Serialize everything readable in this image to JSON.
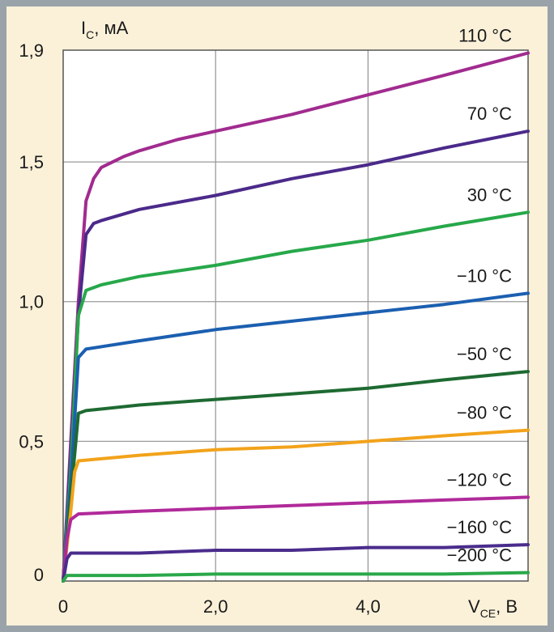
{
  "chart_data": {
    "type": "line",
    "title": "",
    "ylabel": {
      "main": "I",
      "sub": "C",
      "unit": ", мА"
    },
    "xlabel": {
      "main": "V",
      "sub": "CE",
      "unit": ", В"
    },
    "xlim": [
      0,
      6.1
    ],
    "ylim": [
      0,
      1.9
    ],
    "x_ticks": [
      {
        "value": 0,
        "label": "0"
      },
      {
        "value": 2,
        "label": "2,0"
      },
      {
        "value": 4,
        "label": "4,0"
      }
    ],
    "y_ticks": [
      {
        "value": 0,
        "label": "0"
      },
      {
        "value": 0.5,
        "label": "0,5"
      },
      {
        "value": 1.0,
        "label": "1,0"
      },
      {
        "value": 1.5,
        "label": "1,5"
      },
      {
        "value": 1.9,
        "label": "1,9"
      }
    ],
    "grid": true,
    "series": [
      {
        "name": "110 °C",
        "color": "#a12b8f",
        "points": [
          [
            0,
            0
          ],
          [
            0.1,
            0.5
          ],
          [
            0.2,
            1.0
          ],
          [
            0.3,
            1.36
          ],
          [
            0.4,
            1.44
          ],
          [
            0.5,
            1.48
          ],
          [
            0.8,
            1.52
          ],
          [
            1.0,
            1.54
          ],
          [
            1.5,
            1.58
          ],
          [
            2.0,
            1.61
          ],
          [
            3.0,
            1.67
          ],
          [
            4.0,
            1.74
          ],
          [
            5.0,
            1.81
          ],
          [
            6.1,
            1.89
          ]
        ]
      },
      {
        "name": "70 °C",
        "color": "#4b2a8a",
        "points": [
          [
            0,
            0
          ],
          [
            0.1,
            0.45
          ],
          [
            0.2,
            0.95
          ],
          [
            0.3,
            1.24
          ],
          [
            0.4,
            1.28
          ],
          [
            0.5,
            1.29
          ],
          [
            1.0,
            1.33
          ],
          [
            2.0,
            1.38
          ],
          [
            3.0,
            1.44
          ],
          [
            4.0,
            1.49
          ],
          [
            5.0,
            1.55
          ],
          [
            6.1,
            1.61
          ]
        ]
      },
      {
        "name": "30 °C",
        "color": "#27a84a",
        "points": [
          [
            0,
            0
          ],
          [
            0.1,
            0.4
          ],
          [
            0.2,
            0.95
          ],
          [
            0.3,
            1.04
          ],
          [
            0.5,
            1.06
          ],
          [
            1.0,
            1.09
          ],
          [
            2.0,
            1.13
          ],
          [
            3.0,
            1.18
          ],
          [
            4.0,
            1.22
          ],
          [
            5.0,
            1.27
          ],
          [
            6.1,
            1.32
          ]
        ]
      },
      {
        "name": "−10 °C",
        "color": "#1b5fb0",
        "points": [
          [
            0,
            0
          ],
          [
            0.1,
            0.35
          ],
          [
            0.2,
            0.8
          ],
          [
            0.3,
            0.83
          ],
          [
            1.0,
            0.86
          ],
          [
            2.0,
            0.9
          ],
          [
            3.0,
            0.93
          ],
          [
            4.0,
            0.96
          ],
          [
            5.0,
            0.99
          ],
          [
            6.1,
            1.03
          ]
        ]
      },
      {
        "name": "−50 °C",
        "color": "#1e6a32",
        "points": [
          [
            0,
            0
          ],
          [
            0.1,
            0.3
          ],
          [
            0.2,
            0.6
          ],
          [
            0.3,
            0.61
          ],
          [
            1.0,
            0.63
          ],
          [
            2.0,
            0.65
          ],
          [
            3.0,
            0.67
          ],
          [
            4.0,
            0.69
          ],
          [
            5.0,
            0.72
          ],
          [
            6.1,
            0.75
          ]
        ]
      },
      {
        "name": "−80 °C",
        "color": "#f2a31b",
        "points": [
          [
            0,
            0
          ],
          [
            0.1,
            0.25
          ],
          [
            0.15,
            0.39
          ],
          [
            0.2,
            0.43
          ],
          [
            1.0,
            0.45
          ],
          [
            2.0,
            0.47
          ],
          [
            3.0,
            0.48
          ],
          [
            4.0,
            0.5
          ],
          [
            5.0,
            0.52
          ],
          [
            6.1,
            0.54
          ]
        ]
      },
      {
        "name": "−120 °C",
        "color": "#b02a9a",
        "points": [
          [
            0,
            0
          ],
          [
            0.05,
            0.15
          ],
          [
            0.1,
            0.22
          ],
          [
            0.2,
            0.24
          ],
          [
            1.0,
            0.25
          ],
          [
            2.0,
            0.26
          ],
          [
            3.0,
            0.27
          ],
          [
            4.0,
            0.28
          ],
          [
            5.0,
            0.29
          ],
          [
            6.1,
            0.3
          ]
        ]
      },
      {
        "name": "−160 °C",
        "color": "#4a2c8c",
        "points": [
          [
            0,
            0
          ],
          [
            0.05,
            0.08
          ],
          [
            0.1,
            0.1
          ],
          [
            1.0,
            0.1
          ],
          [
            2.0,
            0.11
          ],
          [
            3.0,
            0.11
          ],
          [
            4.0,
            0.12
          ],
          [
            5.0,
            0.12
          ],
          [
            6.1,
            0.13
          ]
        ]
      },
      {
        "name": "−200 °C",
        "color": "#2aa84a",
        "points": [
          [
            0,
            0
          ],
          [
            0.05,
            0.02
          ],
          [
            0.1,
            0.02
          ],
          [
            1.0,
            0.02
          ],
          [
            2.0,
            0.025
          ],
          [
            3.0,
            0.025
          ],
          [
            4.0,
            0.025
          ],
          [
            5.0,
            0.025
          ],
          [
            6.1,
            0.03
          ]
        ]
      }
    ]
  }
}
